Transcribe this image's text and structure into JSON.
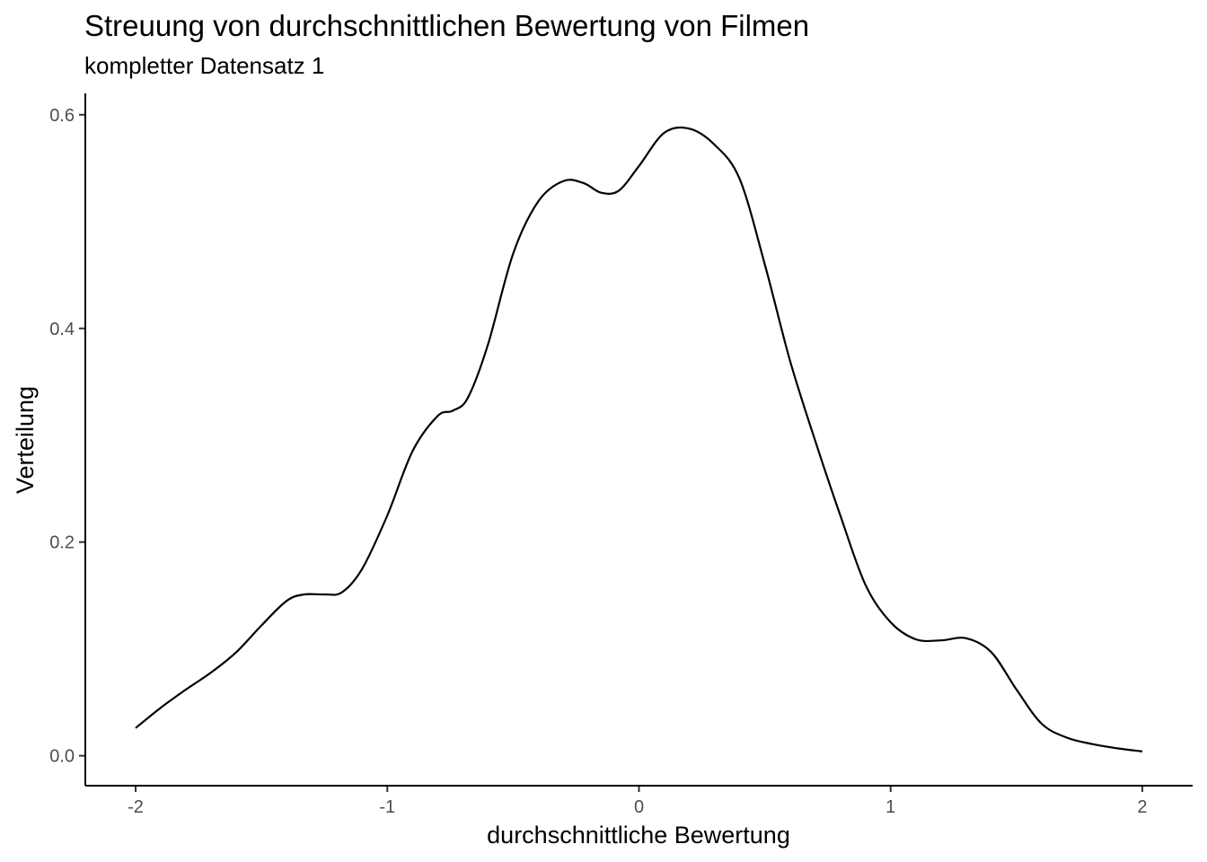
{
  "chart_data": {
    "type": "line",
    "title": "Streuung von durchschnittlichen Bewertung von Filmen",
    "subtitle": "kompletter Datensatz 1",
    "xlabel": "durchschnittliche Bewertung",
    "ylabel": "Verteilung",
    "xlim": [
      -2.2,
      2.2
    ],
    "ylim": [
      -0.028,
      0.62
    ],
    "x_ticks": [
      -2,
      -1,
      0,
      1,
      2
    ],
    "x_tick_labels": [
      "-2",
      "-1",
      "0",
      "1",
      "2"
    ],
    "y_ticks": [
      0.0,
      0.2,
      0.4,
      0.6
    ],
    "y_tick_labels": [
      "0.0",
      "0.2",
      "0.4",
      "0.6"
    ],
    "grid": false,
    "line_color": "#000000",
    "series": [
      {
        "x": [
          -2.0,
          -1.9,
          -1.8,
          -1.7,
          -1.6,
          -1.5,
          -1.4,
          -1.33,
          -1.25,
          -1.18,
          -1.1,
          -1.0,
          -0.9,
          -0.8,
          -0.74,
          -0.68,
          -0.6,
          -0.5,
          -0.4,
          -0.3,
          -0.22,
          -0.15,
          -0.08,
          0.0,
          0.1,
          0.2,
          0.3,
          0.4,
          0.5,
          0.6,
          0.7,
          0.8,
          0.9,
          1.0,
          1.1,
          1.2,
          1.3,
          1.4,
          1.5,
          1.6,
          1.7,
          1.8,
          1.9,
          2.0
        ],
        "y": [
          0.026,
          0.045,
          0.062,
          0.078,
          0.097,
          0.122,
          0.145,
          0.151,
          0.151,
          0.153,
          0.175,
          0.225,
          0.285,
          0.318,
          0.323,
          0.335,
          0.385,
          0.47,
          0.519,
          0.538,
          0.536,
          0.527,
          0.529,
          0.552,
          0.583,
          0.587,
          0.572,
          0.54,
          0.46,
          0.37,
          0.295,
          0.225,
          0.16,
          0.125,
          0.109,
          0.108,
          0.11,
          0.097,
          0.062,
          0.03,
          0.017,
          0.011,
          0.007,
          0.004
        ]
      }
    ]
  }
}
